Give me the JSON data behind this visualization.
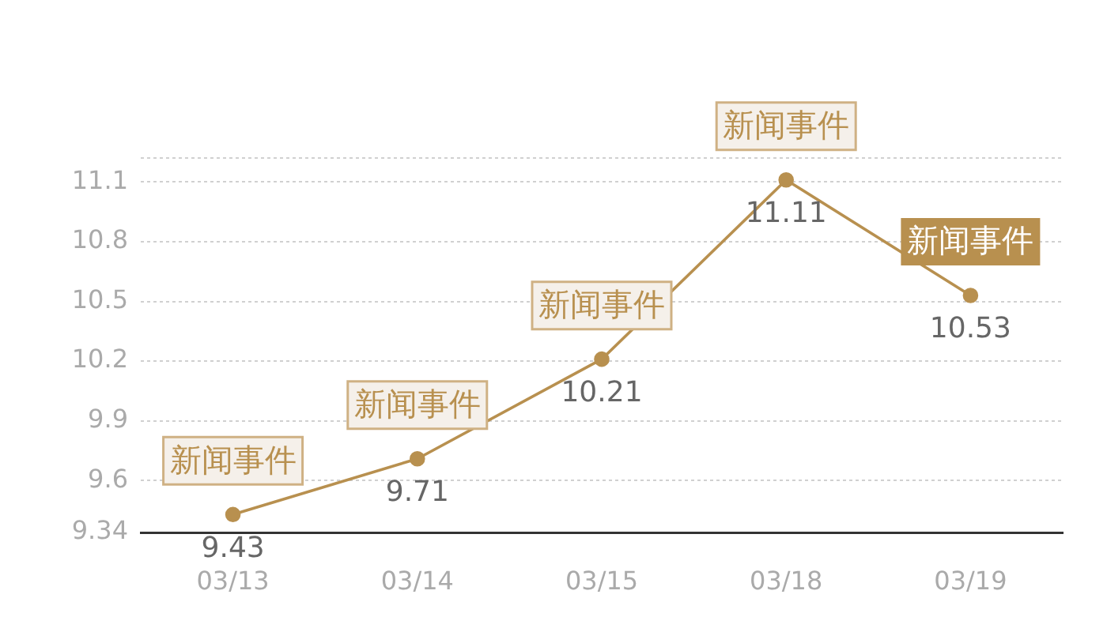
{
  "chart_data": {
    "type": "line",
    "categories": [
      "03/13",
      "03/14",
      "03/15",
      "03/18",
      "03/19"
    ],
    "series": [
      {
        "color": "#b8904f",
        "values": [
          9.43,
          9.71,
          10.21,
          11.11,
          10.53
        ]
      }
    ],
    "ylim": [
      9.34,
      11.22
    ],
    "yticks": [
      9.34,
      9.6,
      9.9,
      10.2,
      10.5,
      10.8,
      11.1,
      {
        "value": 11.22,
        "label": null
      }
    ],
    "grid": "y",
    "marker": "circle",
    "line_style": "solid",
    "data_labels": true,
    "annotations": [
      {
        "text": "新闻事件",
        "x": "03/13",
        "y": 9.43
      },
      {
        "text": "新闻事件",
        "x": "03/14",
        "y": 9.71
      },
      {
        "text": "新闻事件",
        "x": "03/15",
        "y": 10.21
      },
      {
        "text": "新闻事件",
        "x": "03/18",
        "y": 11.11
      },
      {
        "text": "新闻事件",
        "x": "03/19",
        "y": 10.53
      }
    ]
  }
}
